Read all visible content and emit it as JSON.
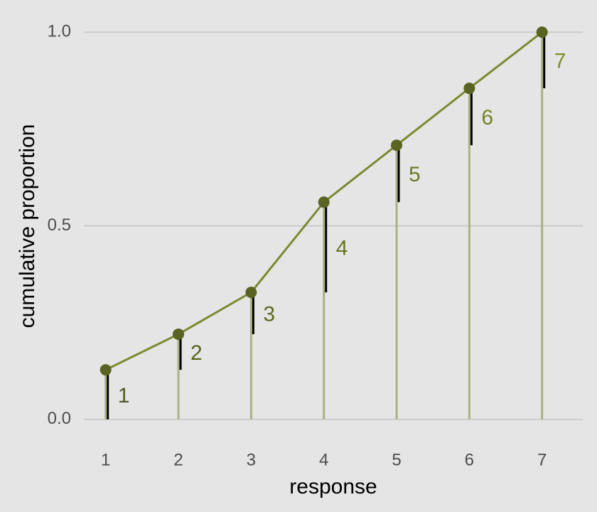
{
  "chart_data": {
    "type": "line",
    "x_label": "response",
    "y_label": "cumulative proportion",
    "x": [
      1,
      2,
      3,
      4,
      5,
      6,
      7
    ],
    "values": [
      0.128,
      0.22,
      0.328,
      0.561,
      0.708,
      0.855,
      1.0
    ],
    "point_labels": [
      "1",
      "2",
      "3",
      "4",
      "5",
      "6",
      "7"
    ],
    "label_colors": [
      "#4f5c22",
      "#56651f",
      "#5c6b22",
      "#637424",
      "#6a7c26",
      "#728528",
      "#7a8e2a"
    ],
    "color": "#7a8a2e",
    "point_color": "#5a6322",
    "stem_color": "#a9b27f",
    "increment_color": "#000000",
    "xlim": [
      0.7,
      7.56
    ],
    "ylim": [
      -0.05,
      1.083
    ],
    "xticks": [
      1,
      2,
      3,
      4,
      5,
      6,
      7
    ],
    "yticks": [
      {
        "value": 0,
        "label": "0.0"
      },
      {
        "value": 0.5,
        "label": "0.5"
      },
      {
        "value": 1,
        "label": "1.0"
      }
    ],
    "grid": true
  }
}
